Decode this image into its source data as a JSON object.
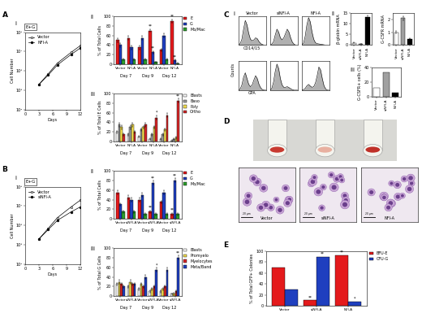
{
  "chart_data": [
    {
      "type": "line",
      "panel_label": "A",
      "sub_label": "i",
      "annotations": [
        "E+G"
      ],
      "x_label": "Days",
      "y_label": "Cell Number",
      "x": [
        3,
        5,
        7,
        10,
        12
      ],
      "xlim": [
        0,
        12
      ],
      "xticks": [
        0,
        3,
        6,
        9,
        12
      ],
      "log": "y",
      "ylim": [
        10000,
        100000000
      ],
      "yticks": [
        {
          "value": 10000,
          "label": "10⁴"
        },
        {
          "value": 100000,
          "label": "10⁵"
        },
        {
          "value": 1000000,
          "label": "10⁶"
        },
        {
          "value": 10000000,
          "label": "10⁷"
        },
        {
          "value": 100000000,
          "label": "10⁸"
        }
      ],
      "legend": "upper left",
      "series": [
        {
          "name": "Vector",
          "color": "#ffffff",
          "marker": "square",
          "values": [
            200000,
            700000,
            2500000,
            9000000,
            20000000
          ]
        },
        {
          "name": "NFI-A",
          "color": "#000000",
          "marker": "circle",
          "values": [
            200000,
            600000,
            2000000,
            7000000,
            15000000
          ]
        }
      ]
    },
    {
      "type": "bar",
      "sub_label": "ii",
      "y_label": "% of Total Cells",
      "categories": [
        "Vector",
        "NFI-A",
        "Vector",
        "NFI-A",
        "Vector",
        "NFI-A"
      ],
      "groups": [
        "Day 7",
        "Day 9",
        "Day 12"
      ],
      "ylim": [
        0,
        100
      ],
      "yticks": [
        0,
        20,
        40,
        60,
        80,
        100
      ],
      "series": [
        {
          "name": "E",
          "color": "#e41a1c",
          "values": [
            50,
            55,
            35,
            70,
            30,
            90
          ],
          "errors": [
            4,
            5,
            4,
            3,
            3,
            3
          ],
          "significance": [
            null,
            null,
            null,
            "**",
            null,
            "**"
          ]
        },
        {
          "name": "G",
          "color": "#1f3fbf",
          "values": [
            40,
            35,
            55,
            25,
            60,
            8
          ],
          "errors": [
            4,
            4,
            4,
            3,
            4,
            2
          ],
          "significance": [
            null,
            null,
            null,
            "**",
            null,
            "**"
          ]
        },
        {
          "name": "Mo/Mac",
          "color": "#2ca02c",
          "values": [
            10,
            10,
            10,
            5,
            10,
            2
          ],
          "errors": [
            2,
            2,
            2,
            1,
            2,
            1
          ]
        }
      ]
    },
    {
      "type": "bar",
      "sub_label": "iii",
      "y_label": "% of Total E Cells",
      "categories": [
        "Vector",
        "NFI-A",
        "Vector",
        "NFI-A",
        "Vector",
        "NFI-A"
      ],
      "groups": [
        "Day 7",
        "Day 9",
        "Day 12"
      ],
      "ylim": [
        0,
        100
      ],
      "yticks": [
        0,
        20,
        40,
        60,
        80,
        100
      ],
      "series": [
        {
          "name": "Blasts",
          "color": "#ffffff",
          "values": [
            20,
            15,
            10,
            5,
            5,
            2
          ],
          "errors": [
            3,
            3,
            2,
            2,
            2,
            1
          ]
        },
        {
          "name": "Baso",
          "color": "#a0a0a0",
          "values": [
            35,
            30,
            25,
            15,
            15,
            5
          ],
          "errors": [
            4,
            4,
            3,
            3,
            3,
            2
          ]
        },
        {
          "name": "Poly",
          "color": "#f5e050",
          "values": [
            30,
            35,
            30,
            30,
            25,
            8
          ],
          "errors": [
            4,
            4,
            3,
            3,
            3,
            2
          ]
        },
        {
          "name": "Ortho",
          "color": "#d62728",
          "values": [
            15,
            20,
            35,
            50,
            55,
            85
          ],
          "errors": [
            3,
            3,
            4,
            4,
            4,
            4
          ],
          "significance": [
            null,
            null,
            null,
            "*",
            null,
            "**"
          ]
        }
      ]
    },
    {
      "type": "line",
      "panel_label": "B",
      "sub_label": "i",
      "annotations": [
        "E+G"
      ],
      "x_label": "Days",
      "y_label": "Cell Number",
      "x": [
        3,
        5,
        7,
        10,
        12
      ],
      "xlim": [
        0,
        12
      ],
      "xticks": [
        0,
        3,
        6,
        9,
        12
      ],
      "log": "y",
      "ylim": [
        10000,
        100000000
      ],
      "yticks": [
        {
          "value": 10000,
          "label": "10⁴"
        },
        {
          "value": 100000,
          "label": "10⁵"
        },
        {
          "value": 1000000,
          "label": "10⁶"
        },
        {
          "value": 10000000,
          "label": "10⁷"
        },
        {
          "value": 100000000,
          "label": "10⁸"
        }
      ],
      "legend": "upper left",
      "series": [
        {
          "name": "Vector",
          "color": "#ffffff",
          "marker": "square",
          "values": [
            200000,
            700000,
            2500000,
            9000000,
            20000000
          ]
        },
        {
          "name": "siNFI-A",
          "color": "#000000",
          "marker": "circle",
          "values": [
            200000,
            600000,
            1800000,
            5000000,
            9000000
          ]
        }
      ]
    },
    {
      "type": "bar",
      "sub_label": "ii",
      "y_label": "% of Total Cells",
      "categories": [
        "Vector",
        "siNFI-A",
        "Vector",
        "siNFI-A",
        "Vector",
        "siNFI-A"
      ],
      "groups": [
        "Day 7",
        "Day 9",
        "Day 12"
      ],
      "ylim": [
        0,
        100
      ],
      "yticks": [
        0,
        20,
        40,
        60,
        80,
        100
      ],
      "series": [
        {
          "name": "E",
          "color": "#e41a1c",
          "values": [
            55,
            45,
            40,
            15,
            35,
            10
          ],
          "errors": [
            4,
            4,
            4,
            3,
            3,
            2
          ],
          "significance": [
            null,
            null,
            null,
            "**",
            null,
            "**"
          ]
        },
        {
          "name": "G",
          "color": "#1f3fbf",
          "values": [
            30,
            40,
            50,
            75,
            55,
            80
          ],
          "errors": [
            3,
            4,
            4,
            4,
            4,
            4
          ],
          "significance": [
            null,
            null,
            null,
            "**",
            null,
            "**"
          ]
        },
        {
          "name": "Mo/Mac",
          "color": "#2ca02c",
          "values": [
            15,
            15,
            10,
            10,
            10,
            10
          ],
          "errors": [
            2,
            2,
            2,
            2,
            2,
            2
          ]
        }
      ]
    },
    {
      "type": "bar",
      "sub_label": "iii",
      "y_label": "% of Total G Cells",
      "categories": [
        "Vector",
        "siNFI-A",
        "Vector",
        "siNFI-A",
        "Vector",
        "siNFI-A"
      ],
      "groups": [
        "Day 7",
        "Day 9",
        "Day 12"
      ],
      "ylim": [
        0,
        100
      ],
      "yticks": [
        0,
        20,
        40,
        60,
        80,
        100
      ],
      "series": [
        {
          "name": "Blasts",
          "color": "#ffffff",
          "values": [
            25,
            20,
            15,
            10,
            10,
            5
          ],
          "errors": [
            3,
            3,
            2,
            2,
            2,
            1
          ]
        },
        {
          "name": "Promyelo",
          "color": "#f5e050",
          "values": [
            30,
            30,
            25,
            15,
            15,
            5
          ],
          "errors": [
            4,
            4,
            3,
            3,
            3,
            2
          ]
        },
        {
          "name": "Myelocytes",
          "color": "#d62728",
          "values": [
            25,
            25,
            20,
            20,
            20,
            10
          ],
          "errors": [
            3,
            3,
            3,
            3,
            3,
            2
          ]
        },
        {
          "name": "Meta/Band",
          "color": "#1f3fbf",
          "values": [
            20,
            25,
            40,
            55,
            55,
            80
          ],
          "errors": [
            3,
            3,
            4,
            4,
            4,
            4
          ],
          "significance": [
            null,
            null,
            null,
            "*",
            null,
            "**"
          ]
        }
      ]
    },
    {
      "type": "area",
      "panel_label": "C",
      "sub_label": "i",
      "y_label": "Counts",
      "tick_labels": false,
      "columns": [
        "Vector",
        "siNFI-A",
        "NFI-A"
      ],
      "x": [
        0,
        0.25,
        0.5,
        0.75,
        1,
        1.25,
        1.5,
        1.75,
        2,
        2.25,
        2.5,
        2.75,
        3,
        3.25,
        3.5,
        3.75,
        4
      ],
      "xlim": [
        0,
        4
      ],
      "ylim": [
        0,
        100
      ],
      "rows": [
        {
          "x_label": "CD14/15",
          "series": [
            [
              0,
              5,
              20,
              55,
              85,
              70,
              40,
              20,
              15,
              18,
              25,
              22,
              12,
              5,
              2,
              0,
              0
            ],
            [
              0,
              3,
              12,
              35,
              55,
              45,
              25,
              18,
              25,
              40,
              55,
              45,
              25,
              10,
              3,
              0,
              0
            ],
            [
              0,
              6,
              30,
              70,
              95,
              80,
              45,
              20,
              8,
              5,
              4,
              3,
              2,
              1,
              0,
              0,
              0
            ]
          ]
        },
        {
          "x_label": "GPA",
          "series": [
            [
              0,
              4,
              18,
              45,
              60,
              40,
              20,
              12,
              18,
              35,
              50,
              40,
              20,
              8,
              2,
              0,
              0
            ],
            [
              0,
              6,
              28,
              65,
              90,
              75,
              40,
              18,
              10,
              10,
              12,
              9,
              5,
              2,
              0,
              0,
              0
            ],
            [
              0,
              2,
              6,
              15,
              20,
              14,
              10,
              12,
              25,
              50,
              80,
              70,
              40,
              15,
              4,
              0,
              0
            ]
          ]
        }
      ]
    },
    {
      "type": "bar",
      "sub_label": "ii",
      "y_label": "β-globin mRNA",
      "categories": [
        "Vector",
        "siNFI-A",
        "NFI-A"
      ],
      "values": [
        1,
        0.6,
        13
      ],
      "errors": [
        0.2,
        0.1,
        0.8
      ],
      "colors": [
        "#ffffff",
        "#a0a0a0",
        "#000000"
      ],
      "ylim": [
        0,
        15
      ],
      "yticks": [
        0,
        5,
        10,
        15
      ]
    },
    {
      "type": "bar",
      "y_label": "G-CSFR mRNA",
      "categories": [
        "Vector",
        "siNFI-A",
        "NFI-A"
      ],
      "values": [
        1,
        2.1,
        0.5
      ],
      "errors": [
        0.1,
        0.15,
        0.05
      ],
      "colors": [
        "#ffffff",
        "#a0a0a0",
        "#000000"
      ],
      "ylim": [
        0,
        2.5
      ],
      "yticks": [
        0,
        1,
        2
      ]
    },
    {
      "type": "bar",
      "sub_label": "iii",
      "y_label": "G-CSFR+ cells (%)",
      "categories": [
        "Vector",
        "siNFI-A",
        "NFI-A"
      ],
      "values": [
        12,
        33,
        5
      ],
      "colors": [
        "#ffffff",
        "#a0a0a0",
        "#000000"
      ],
      "ylim": [
        0,
        40
      ],
      "yticks": [
        0,
        20,
        40
      ]
    },
    {
      "type": "bar",
      "panel_label": "E",
      "y_label": "% of Total GFP+ Colonies",
      "categories": [
        "Vector",
        "siNFI-A",
        "NFI-A"
      ],
      "ylim": [
        0,
        100
      ],
      "yticks": [
        0,
        20,
        40,
        60,
        80,
        100
      ],
      "series": [
        {
          "name": "BFU-E",
          "color": "#e41a1c",
          "values": [
            70,
            10,
            92
          ],
          "significance": [
            null,
            "**",
            "**"
          ]
        },
        {
          "name": "CFU-G",
          "color": "#1f3fbf",
          "values": [
            30,
            90,
            8
          ],
          "significance": [
            null,
            "**",
            "*"
          ]
        }
      ]
    }
  ],
  "photos": {
    "panel_label": "D",
    "samples": [
      "Vector",
      "siNFI-A",
      "NFI-A"
    ],
    "scale_bar": "20 µm"
  }
}
